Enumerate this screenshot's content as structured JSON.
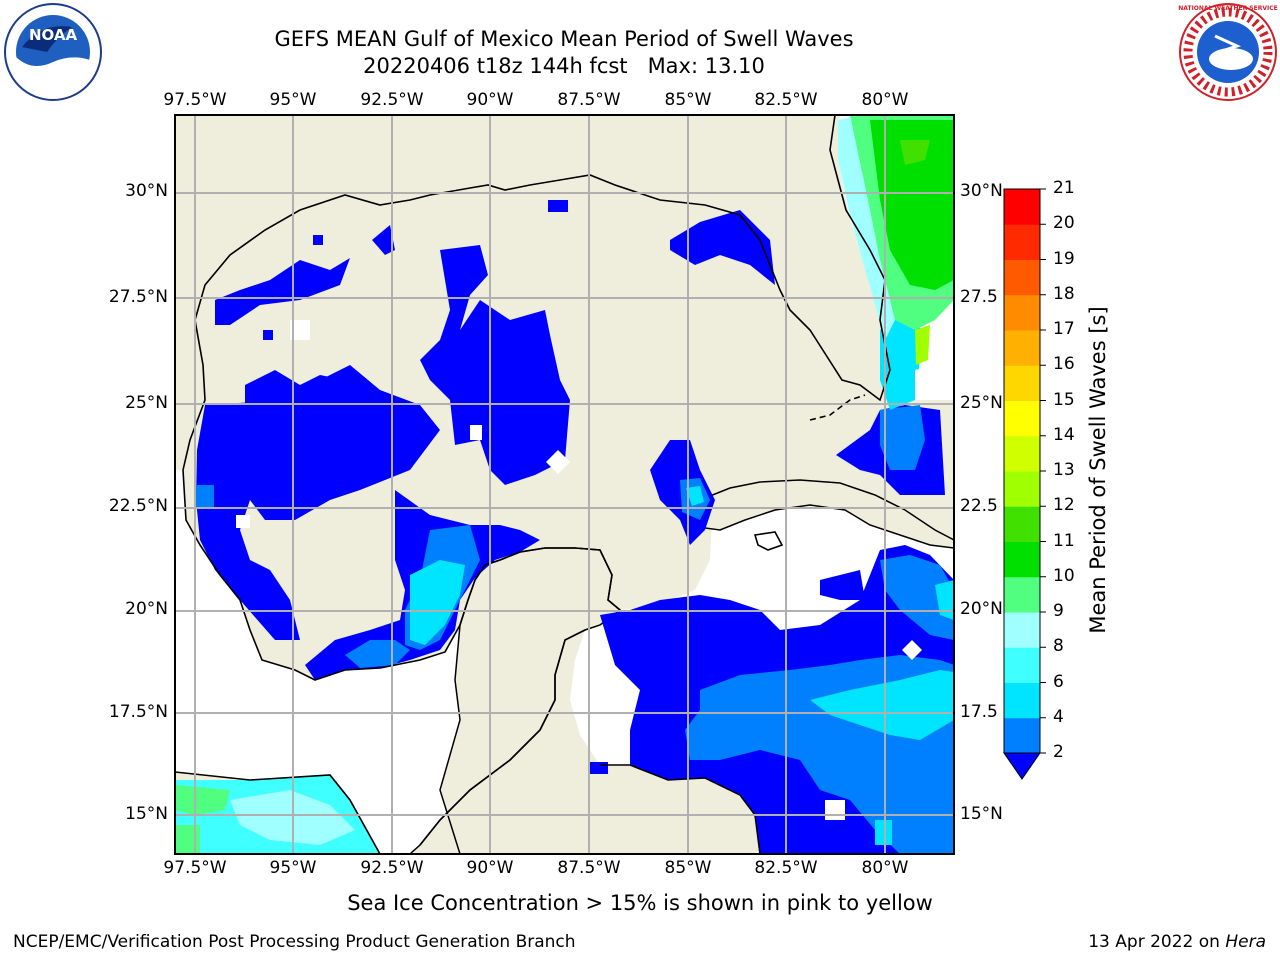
{
  "title": {
    "line1": "GEFS MEAN Gulf of Mexico Mean Period of Swell Waves",
    "line2": "20220406 t18z 144h fcst   Max: 13.10"
  },
  "logos": {
    "left": "NOAA",
    "right": "NATIONAL WEATHER SERVICE"
  },
  "map": {
    "extent": {
      "lon": [
        -98.0,
        -78.0
      ],
      "lat": [
        14.0,
        32.0
      ]
    },
    "lon_ticks": [
      "97.5°W",
      "95°W",
      "92.5°W",
      "90°W",
      "87.5°W",
      "85°W",
      "82.5°W",
      "80°W"
    ],
    "lat_ticks_left": [
      "30°N",
      "27.5°N",
      "25°N",
      "22.5°N",
      "20°N",
      "17.5°N",
      "15°N"
    ],
    "lat_ticks_right": [
      "30°N",
      "27.5",
      "25°N",
      "22.5",
      "20°N",
      "17.5",
      "15°N"
    ],
    "colors": {
      "land": "#efeedc",
      "ocean_no_data": "#ffffff",
      "grid": "#b0b0b0"
    }
  },
  "colorbar": {
    "label": "Mean Period of Swell Waves [s]",
    "ticks": [
      "2",
      "4",
      "6",
      "8",
      "9",
      "10",
      "11",
      "12",
      "13",
      "14",
      "15",
      "16",
      "17",
      "18",
      "19",
      "20",
      "21"
    ],
    "colors": [
      "#0000ff",
      "#0080ff",
      "#00e5ff",
      "#40ffff",
      "#a0ffff",
      "#50ff80",
      "#00e000",
      "#40e000",
      "#a0ff00",
      "#d0ff00",
      "#ffff00",
      "#ffd700",
      "#ffb000",
      "#ff8c00",
      "#ff5a00",
      "#ff2a00",
      "#ff0000"
    ],
    "extend_min_color": "#0000ff"
  },
  "note": "Sea Ice Concentration > 15% is shown in pink to yellow",
  "footer": {
    "left": "NCEP/EMC/Verification Post Processing Product Generation Branch",
    "right_date": "13 Apr 2022 on ",
    "right_host": "Hera"
  }
}
